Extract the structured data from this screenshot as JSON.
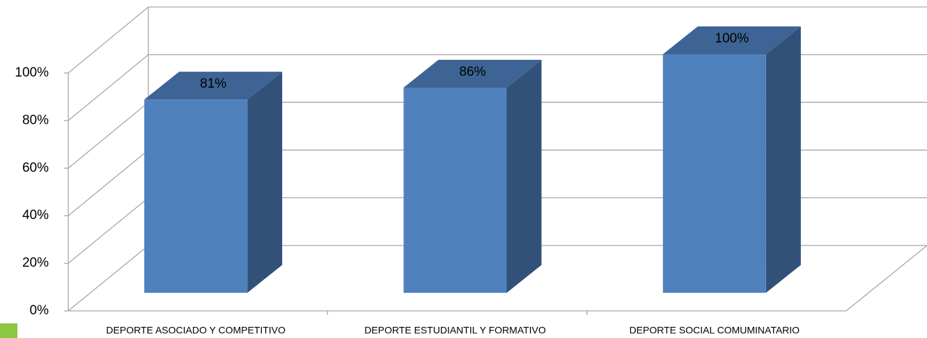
{
  "chart_data": {
    "type": "bar3d",
    "categories": [
      "DEPORTE ASOCIADO Y COMPETITIVO",
      "DEPORTE ESTUDIANTIL Y FORMATIVO",
      "DEPORTE SOCIAL COMUMINATARIO"
    ],
    "values": [
      81,
      86,
      100
    ],
    "value_labels": [
      "81%",
      "86%",
      "100%"
    ],
    "color": "#4f81bd",
    "ylim": [
      0,
      100
    ],
    "yticks": [
      {
        "value": 0,
        "label": "0%"
      },
      {
        "value": 20,
        "label": "20%"
      },
      {
        "value": 40,
        "label": "40%"
      },
      {
        "value": 60,
        "label": "60%"
      },
      {
        "value": 80,
        "label": "80%"
      },
      {
        "value": 100,
        "label": "100%"
      }
    ],
    "grid": true
  }
}
